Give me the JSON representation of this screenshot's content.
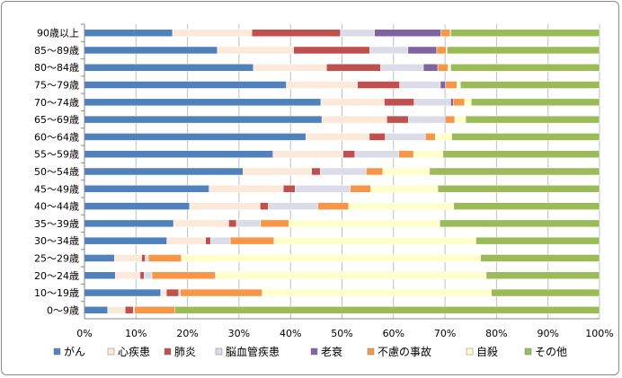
{
  "chart_data": {
    "type": "bar",
    "orientation": "horizontal",
    "stacked": "percent",
    "categories": [
      "0〜9歳",
      "10〜19歳",
      "20〜24歳",
      "25〜29歳",
      "30〜34歳",
      "35〜39歳",
      "40〜44歳",
      "45〜49歳",
      "50〜54歳",
      "55〜59歳",
      "60〜64歳",
      "65〜69歳",
      "70〜74歳",
      "75〜79歳",
      "80〜84歳",
      "85〜89歳",
      "90歳以上"
    ],
    "series": [
      {
        "name": "がん",
        "color": "#4f81bd",
        "values": [
          4.5,
          14.8,
          6.0,
          5.8,
          16.0,
          17.3,
          20.4,
          24.2,
          30.8,
          36.6,
          43.0,
          46.1,
          45.9,
          39.2,
          32.8,
          25.8,
          17.1
        ]
      },
      {
        "name": "心疾患",
        "color": "#fde9d9",
        "values": [
          3.4,
          1.1,
          4.8,
          5.3,
          7.5,
          10.7,
          13.7,
          14.4,
          13.3,
          13.6,
          12.3,
          12.6,
          12.3,
          13.8,
          14.2,
          14.8,
          15.4
        ]
      },
      {
        "name": "肺炎",
        "color": "#c0504d",
        "values": [
          1.6,
          2.4,
          0.8,
          0.7,
          1.0,
          1.5,
          1.6,
          2.3,
          1.7,
          2.3,
          3.1,
          4.2,
          5.8,
          8.2,
          10.5,
          14.8,
          17.2
        ]
      },
      {
        "name": "脳血管疾患",
        "color": "#dcdce8",
        "values": [
          0.2,
          0.3,
          1.5,
          0.6,
          3.8,
          4.7,
          9.6,
          10.7,
          8.9,
          8.5,
          7.8,
          7.0,
          7.1,
          7.9,
          8.3,
          7.4,
          6.6
        ]
      },
      {
        "name": "老衰",
        "color": "#8064a2",
        "values": [
          0.0,
          0.0,
          0.0,
          0.0,
          0.0,
          0.0,
          0.0,
          0.0,
          0.0,
          0.0,
          0.0,
          0.2,
          0.5,
          1.0,
          2.8,
          5.6,
          12.9
        ]
      },
      {
        "name": "不慮の事故",
        "color": "#f79646",
        "values": [
          7.8,
          15.9,
          12.3,
          6.4,
          8.5,
          5.5,
          6.0,
          4.0,
          3.2,
          2.9,
          1.9,
          1.8,
          2.2,
          2.2,
          2.0,
          1.8,
          1.8
        ]
      },
      {
        "name": "自殺",
        "color": "#ffffcc",
        "values": [
          0.0,
          44.5,
          52.6,
          58.1,
          39.2,
          29.3,
          20.4,
          13.0,
          9.1,
          5.7,
          3.2,
          2.1,
          1.3,
          0.7,
          0.5,
          0.2,
          0.1
        ]
      },
      {
        "name": "その他",
        "color": "#9bbb59",
        "values": [
          82.5,
          21.0,
          22.0,
          23.1,
          24.0,
          31.0,
          28.3,
          31.4,
          33.0,
          30.4,
          28.7,
          26.0,
          24.9,
          27.0,
          28.9,
          29.6,
          28.9
        ]
      }
    ],
    "x_ticks": [
      "0%",
      "10%",
      "20%",
      "30%",
      "40%",
      "50%",
      "60%",
      "70%",
      "80%",
      "90%",
      "100%"
    ],
    "xlim": [
      0,
      100
    ],
    "grid": true,
    "legend": "bottom"
  }
}
